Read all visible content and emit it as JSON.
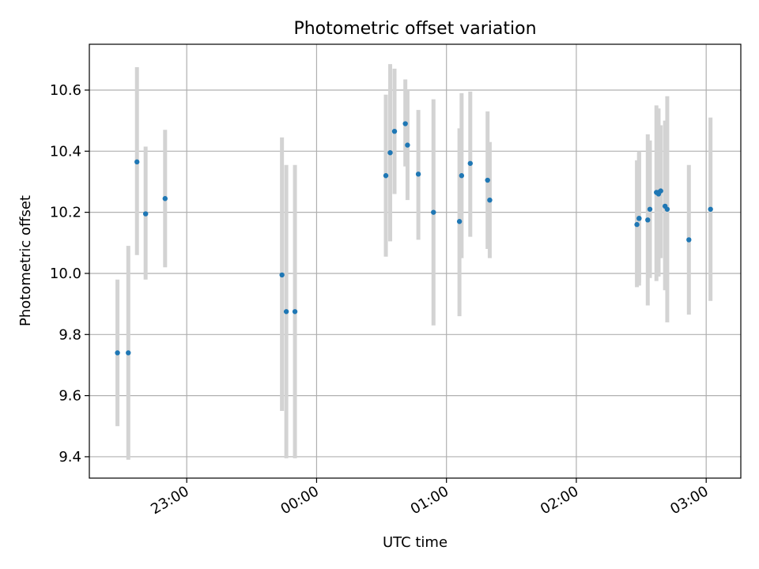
{
  "chart_data": {
    "type": "scatter",
    "title": "Photometric offset variation",
    "xlabel": "UTC time",
    "ylabel": "Photometric offset",
    "grid": true,
    "legend": "none",
    "xlim": [
      "22:15",
      "03:16"
    ],
    "ylim": [
      9.33,
      10.75
    ],
    "x_ticks": [
      "23:00",
      "00:00",
      "01:00",
      "02:00",
      "03:00"
    ],
    "y_ticks": [
      "9.4",
      "9.6",
      "9.8",
      "10.0",
      "10.2",
      "10.4",
      "10.6"
    ],
    "colors": {
      "point": "#1f77b4",
      "errorbar": "#d3d3d3",
      "grid": "#b0b0b0"
    },
    "series": [
      {
        "points": [
          {
            "x": "22:28",
            "y": 9.74,
            "y_low": 9.5,
            "y_high": 9.98
          },
          {
            "x": "22:33",
            "y": 9.74,
            "y_low": 9.39,
            "y_high": 10.09
          },
          {
            "x": "22:37",
            "y": 10.365,
            "y_low": 10.06,
            "y_high": 10.675
          },
          {
            "x": "22:41",
            "y": 10.195,
            "y_low": 9.98,
            "y_high": 10.415
          },
          {
            "x": "22:50",
            "y": 10.245,
            "y_low": 10.02,
            "y_high": 10.47
          },
          {
            "x": "23:44",
            "y": 9.995,
            "y_low": 9.55,
            "y_high": 10.445
          },
          {
            "x": "23:46",
            "y": 9.875,
            "y_low": 9.395,
            "y_high": 10.355
          },
          {
            "x": "23:50",
            "y": 9.875,
            "y_low": 9.395,
            "y_high": 10.355
          },
          {
            "x": "00:32",
            "y": 10.32,
            "y_low": 10.055,
            "y_high": 10.585
          },
          {
            "x": "00:34",
            "y": 10.395,
            "y_low": 10.105,
            "y_high": 10.685
          },
          {
            "x": "00:36",
            "y": 10.465,
            "y_low": 10.26,
            "y_high": 10.67
          },
          {
            "x": "00:41",
            "y": 10.49,
            "y_low": 10.35,
            "y_high": 10.635
          },
          {
            "x": "00:42",
            "y": 10.42,
            "y_low": 10.24,
            "y_high": 10.6
          },
          {
            "x": "00:47",
            "y": 10.325,
            "y_low": 10.11,
            "y_high": 10.535
          },
          {
            "x": "00:54",
            "y": 10.2,
            "y_low": 9.83,
            "y_high": 10.57
          },
          {
            "x": "01:06",
            "y": 10.17,
            "y_low": 9.86,
            "y_high": 10.475
          },
          {
            "x": "01:07",
            "y": 10.32,
            "y_low": 10.05,
            "y_high": 10.59
          },
          {
            "x": "01:11",
            "y": 10.36,
            "y_low": 10.12,
            "y_high": 10.595
          },
          {
            "x": "01:19",
            "y": 10.305,
            "y_low": 10.08,
            "y_high": 10.53
          },
          {
            "x": "01:20",
            "y": 10.24,
            "y_low": 10.05,
            "y_high": 10.43
          },
          {
            "x": "02:28",
            "y": 10.16,
            "y_low": 9.955,
            "y_high": 10.37
          },
          {
            "x": "02:29",
            "y": 10.18,
            "y_low": 9.96,
            "y_high": 10.395
          },
          {
            "x": "02:29",
            "y": 10.18,
            "y_low": 9.97,
            "y_high": 10.4
          },
          {
            "x": "02:33",
            "y": 10.175,
            "y_low": 9.895,
            "y_high": 10.455
          },
          {
            "x": "02:34",
            "y": 10.21,
            "y_low": 9.985,
            "y_high": 10.435
          },
          {
            "x": "02:37",
            "y": 10.265,
            "y_low": 9.975,
            "y_high": 10.55
          },
          {
            "x": "02:38",
            "y": 10.265,
            "y_low": 10.0,
            "y_high": 10.54
          },
          {
            "x": "02:38",
            "y": 10.26,
            "y_low": 9.99,
            "y_high": 10.53
          },
          {
            "x": "02:39",
            "y": 10.27,
            "y_low": 10.05,
            "y_high": 10.485
          },
          {
            "x": "02:41",
            "y": 10.22,
            "y_low": 9.945,
            "y_high": 10.5
          },
          {
            "x": "02:42",
            "y": 10.21,
            "y_low": 9.84,
            "y_high": 10.58
          },
          {
            "x": "02:52",
            "y": 10.11,
            "y_low": 9.865,
            "y_high": 10.355
          },
          {
            "x": "03:02",
            "y": 10.21,
            "y_low": 9.91,
            "y_high": 10.51
          }
        ]
      }
    ]
  }
}
